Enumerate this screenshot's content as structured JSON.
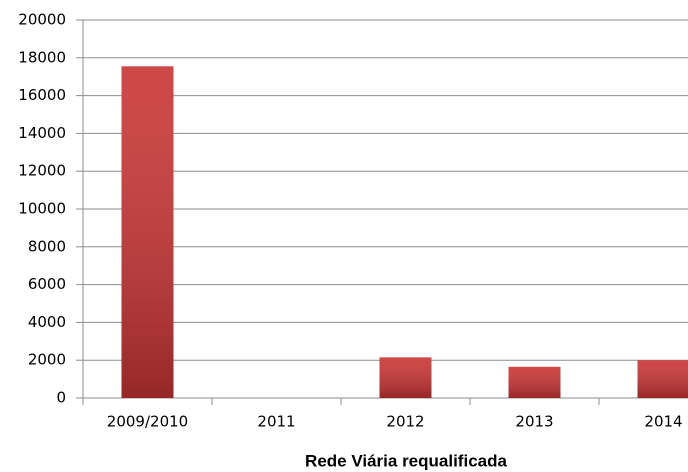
{
  "chart_data": {
    "type": "bar",
    "title": "Rede Viária requalificada",
    "categories": [
      "2009/2010",
      "2011",
      "2012",
      "2013",
      "2014"
    ],
    "values": [
      17550,
      0,
      2150,
      1650,
      2000
    ],
    "color": "#c93434",
    "ylim": [
      0,
      20000
    ],
    "yticks": [
      0,
      2000,
      4000,
      6000,
      8000,
      10000,
      12000,
      14000,
      16000,
      18000,
      20000
    ],
    "grid": true
  }
}
